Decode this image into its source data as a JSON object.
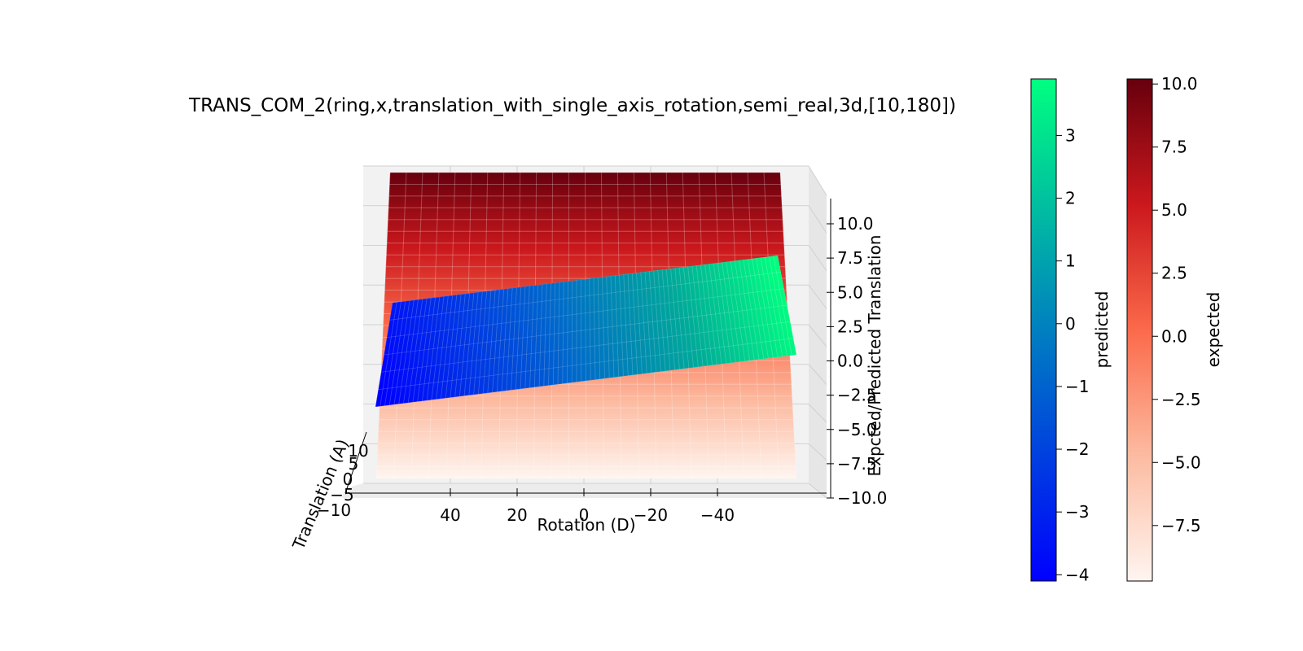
{
  "chart_data": {
    "type": "surface3d",
    "title": "TRANS_COM_2(ring,x,translation_with_single_axis_rotation,semi_real,3d,[10,180])",
    "xlabel": "Rotation (D)",
    "ylabel": "Translation (A)",
    "zlabel": "Expcted/Predicted Translation",
    "x_ticks": [
      "40",
      "20",
      "0",
      "−20",
      "−40"
    ],
    "y_ticks": [
      "−10",
      "−5",
      "0",
      "5",
      "10"
    ],
    "z_ticks": [
      "−10.0",
      "−7.5",
      "−5.0",
      "−2.5",
      "0.0",
      "2.5",
      "5.0",
      "7.5",
      "10.0"
    ],
    "x_range": [
      -50,
      50
    ],
    "y_range": [
      -10,
      10
    ],
    "z_range": [
      -10,
      10
    ],
    "grid": true,
    "series": [
      {
        "name": "expected",
        "colormap": "Reds",
        "x_range": [
          -50,
          50
        ],
        "z_range": [
          -9.7,
          10.2
        ]
      },
      {
        "name": "predicted",
        "colormap": "winter",
        "corners": [
          {
            "x": 50,
            "z_front": -4.1,
            "z_back": 1.6
          },
          {
            "x": -50,
            "z_front": 0.2,
            "z_back": 3.9
          }
        ]
      }
    ],
    "colorbars": [
      {
        "label": "predicted",
        "colors": [
          "#0000ff",
          "#00ff80"
        ],
        "range": [
          -4.1,
          3.9
        ],
        "ticks": [
          "−4",
          "−3",
          "−2",
          "−1",
          "0",
          "1",
          "2",
          "3"
        ],
        "tick_values": [
          -4,
          -3,
          -2,
          -1,
          0,
          1,
          2,
          3
        ]
      },
      {
        "label": "expected",
        "colors": [
          "#fff5f0",
          "#fcbba1",
          "#fb6a4a",
          "#cb181d",
          "#67000d"
        ],
        "range": [
          -9.7,
          10.2
        ],
        "ticks": [
          "−7.5",
          "−5.0",
          "−2.5",
          "0.0",
          "2.5",
          "5.0",
          "7.5",
          "10.0"
        ],
        "tick_values": [
          -7.5,
          -5.0,
          -2.5,
          0.0,
          2.5,
          5.0,
          7.5,
          10.0
        ]
      }
    ]
  }
}
